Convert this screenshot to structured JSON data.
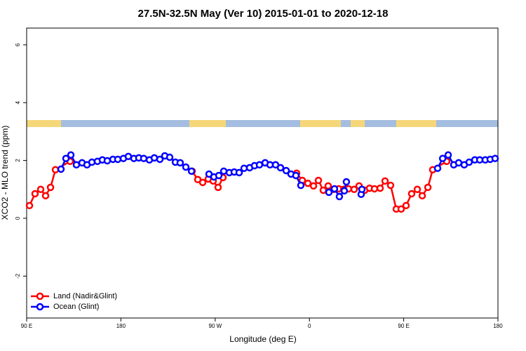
{
  "chart_data": {
    "type": "line",
    "title": "27.5N-32.5N May (Ver 10)   2015-01-01 to 2020-12-18",
    "x_label": "Longitude (deg E)",
    "y_label": "XCO2 - MLO trend (ppm)",
    "xlim": [
      90,
      540
    ],
    "xticks": [
      {
        "value": 90,
        "label": "90 E"
      },
      180,
      {
        "value": 270,
        "label": "90 W"
      },
      {
        "value": 360,
        "label": "0"
      },
      {
        "value": 450,
        "label": "90 E"
      },
      {
        "value": 540,
        "label": "180"
      }
    ],
    "ylim": [
      -3.45,
      6.58
    ],
    "yticks": [
      -2,
      0,
      2,
      4,
      6
    ],
    "legend": "bottomleft",
    "series": [
      {
        "name": "Land (Nadir&Glint)",
        "color": "#ff0000",
        "x": [
          92.7,
          98.0,
          103.4,
          108.1,
          112.8,
          117.5,
          131.5,
          null,
          248.0,
          253.4,
          258.1,
          263.4,
          268.1,
          272.8,
          277.5,
          null,
          347.8,
          353.2,
          358.5,
          363.9,
          368.6,
          373.2,
          377.9,
          383.3,
          388.0,
          392.7,
          397.3,
          402.7,
          407.4,
          412.8,
          417.4,
          422.1,
          427.5,
          432.2,
          437.5,
          442.9,
          447.6,
          452.3,
          457.6,
          463.0,
          467.7,
          473.1,
          477.7,
          491.1
        ],
        "values": [
          0.44,
          0.85,
          1.0,
          0.78,
          1.07,
          1.68,
          1.97,
          null,
          1.63,
          1.34,
          1.24,
          1.36,
          1.29,
          1.07,
          1.41,
          null,
          1.56,
          1.31,
          1.21,
          1.12,
          1.31,
          0.97,
          1.12,
          1.0,
          1.02,
          1.0,
          1.02,
          1.0,
          1.12,
          0.97,
          1.04,
          1.02,
          1.04,
          1.29,
          1.14,
          0.32,
          0.32,
          0.44,
          0.85,
          1.0,
          0.78,
          1.07,
          1.68,
          1.97
        ]
      },
      {
        "name": "Ocean (Glint)",
        "color": "#0000ff",
        "x": [
          122.8,
          127.5,
          132.2,
          137.5,
          142.9,
          147.6,
          152.3,
          157.6,
          162.3,
          167.0,
          172.4,
          177.0,
          182.4,
          187.1,
          192.4,
          197.1,
          201.8,
          207.2,
          211.9,
          217.2,
          221.9,
          226.6,
          232.0,
          236.6,
          242.0,
          247.4,
          null,
          264.1,
          268.8,
          273.5,
          278.2,
          283.5,
          288.2,
          292.9,
          297.6,
          302.9,
          307.6,
          312.3,
          317.7,
          322.4,
          327.7,
          332.4,
          337.8,
          342.4,
          347.1,
          351.8,
          null,
          378.6,
          383.9,
          388.6,
          393.3,
          395.3,
          null,
          409.4,
          410.1,
          null,
          482.4,
          487.2,
          492.5,
          497.8,
          502.5,
          507.8,
          512.5,
          517.9,
          522.6,
          527.9,
          532.6,
          537.3
        ],
        "values": [
          1.7,
          2.07,
          2.19,
          1.85,
          1.92,
          1.85,
          1.94,
          1.97,
          2.02,
          1.99,
          2.04,
          2.04,
          2.07,
          2.14,
          2.07,
          2.09,
          2.07,
          2.02,
          2.09,
          2.04,
          2.16,
          2.11,
          1.94,
          1.92,
          1.77,
          1.63,
          null,
          1.53,
          1.43,
          1.48,
          1.63,
          1.58,
          1.6,
          1.58,
          1.73,
          1.75,
          1.82,
          1.85,
          1.92,
          1.85,
          1.85,
          1.75,
          1.65,
          1.53,
          1.48,
          1.14,
          null,
          0.9,
          1.02,
          0.75,
          0.95,
          1.26,
          null,
          0.83,
          1.0,
          null,
          1.73,
          2.07,
          2.19,
          1.85,
          1.92,
          1.85,
          1.94,
          2.02,
          2.02,
          2.02,
          2.04,
          2.07
        ]
      }
    ]
  }
}
